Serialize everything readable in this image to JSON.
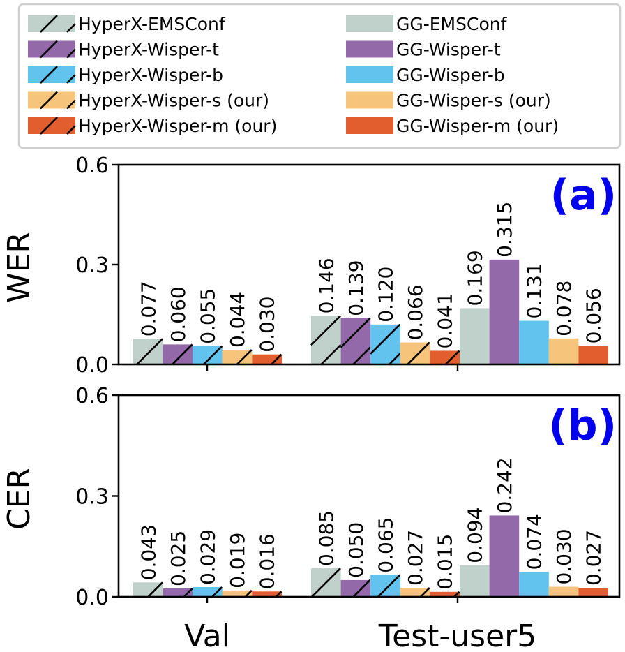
{
  "legend": {
    "entries": [
      "HyperX-EMSConf",
      "HyperX-Wisper-t",
      "HyperX-Wisper-b",
      "HyperX-Wisper-s (our)",
      "HyperX-Wisper-m (our)",
      "GG-EMSConf",
      "GG-Wisper-t",
      "GG-Wisper-b",
      "GG-Wisper-s (our)",
      "GG-Wisper-m (our)"
    ]
  },
  "colors": {
    "EMSConf": "#bfd1ca",
    "Wisper-t": "#9469aa",
    "Wisper-b": "#61c3ee",
    "Wisper-s": "#f6c47a",
    "Wisper-m": "#e35e2f",
    "panel_label": "#0000ee"
  },
  "chart_data": [
    {
      "type": "bar",
      "panel_label": "(a)",
      "ylabel": "WER",
      "ylim": [
        0,
        0.6
      ],
      "yticks": [
        "0.0",
        "0.3",
        "0.6"
      ],
      "categories": [
        "Val",
        "Test-user5"
      ],
      "series": [
        {
          "name": "HyperX-EMSConf",
          "values": [
            0.077,
            0.146
          ],
          "labels": [
            "0.077",
            "0.146"
          ]
        },
        {
          "name": "HyperX-Wisper-t",
          "values": [
            0.06,
            0.139
          ],
          "labels": [
            "0.060",
            "0.139"
          ]
        },
        {
          "name": "HyperX-Wisper-b",
          "values": [
            0.055,
            0.12
          ],
          "labels": [
            "0.055",
            "0.120"
          ]
        },
        {
          "name": "HyperX-Wisper-s (our)",
          "values": [
            0.044,
            0.066
          ],
          "labels": [
            "0.044",
            "0.066"
          ]
        },
        {
          "name": "HyperX-Wisper-m (our)",
          "values": [
            0.03,
            0.041
          ],
          "labels": [
            "0.030",
            "0.041"
          ]
        },
        {
          "name": "GG-EMSConf",
          "values": [
            null,
            0.169
          ],
          "labels": [
            "",
            "0.169"
          ]
        },
        {
          "name": "GG-Wisper-t",
          "values": [
            null,
            0.315
          ],
          "labels": [
            "",
            "0.315"
          ]
        },
        {
          "name": "GG-Wisper-b",
          "values": [
            null,
            0.131
          ],
          "labels": [
            "",
            "0.131"
          ]
        },
        {
          "name": "GG-Wisper-s (our)",
          "values": [
            null,
            0.078
          ],
          "labels": [
            "",
            "0.078"
          ]
        },
        {
          "name": "GG-Wisper-m (our)",
          "values": [
            null,
            0.056
          ],
          "labels": [
            "",
            "0.056"
          ]
        }
      ]
    },
    {
      "type": "bar",
      "panel_label": "(b)",
      "ylabel": "CER",
      "ylim": [
        0,
        0.6
      ],
      "yticks": [
        "0.0",
        "0.3",
        "0.6"
      ],
      "categories": [
        "Val",
        "Test-user5"
      ],
      "series": [
        {
          "name": "HyperX-EMSConf",
          "values": [
            0.043,
            0.085
          ],
          "labels": [
            "0.043",
            "0.085"
          ]
        },
        {
          "name": "HyperX-Wisper-t",
          "values": [
            0.025,
            0.05
          ],
          "labels": [
            "0.025",
            "0.050"
          ]
        },
        {
          "name": "HyperX-Wisper-b",
          "values": [
            0.029,
            0.065
          ],
          "labels": [
            "0.029",
            "0.065"
          ]
        },
        {
          "name": "HyperX-Wisper-s (our)",
          "values": [
            0.019,
            0.027
          ],
          "labels": [
            "0.019",
            "0.027"
          ]
        },
        {
          "name": "HyperX-Wisper-m (our)",
          "values": [
            0.016,
            0.015
          ],
          "labels": [
            "0.016",
            "0.015"
          ]
        },
        {
          "name": "GG-EMSConf",
          "values": [
            null,
            0.094
          ],
          "labels": [
            "",
            "0.094"
          ]
        },
        {
          "name": "GG-Wisper-t",
          "values": [
            null,
            0.242
          ],
          "labels": [
            "",
            "0.242"
          ]
        },
        {
          "name": "GG-Wisper-b",
          "values": [
            null,
            0.074
          ],
          "labels": [
            "",
            "0.074"
          ]
        },
        {
          "name": "GG-Wisper-s (our)",
          "values": [
            null,
            0.03
          ],
          "labels": [
            "",
            "0.030"
          ]
        },
        {
          "name": "GG-Wisper-m (our)",
          "values": [
            null,
            0.027
          ],
          "labels": [
            "",
            "0.027"
          ]
        }
      ]
    }
  ]
}
